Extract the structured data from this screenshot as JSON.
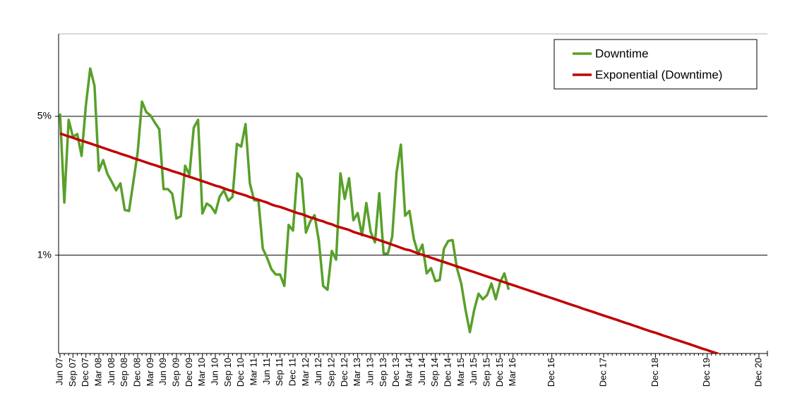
{
  "chart_data": {
    "type": "line",
    "log_scale": true,
    "grid": true,
    "legend": "top-right",
    "ylim": [
      0.32,
      13
    ],
    "yticks": [
      {
        "value": 1,
        "label": "1%"
      },
      {
        "value": 5,
        "label": "5%"
      }
    ],
    "categories": [
      "Jun 07",
      null,
      null,
      "Sep 07",
      null,
      null,
      "Dec 07",
      null,
      null,
      "Mar 08",
      null,
      null,
      "Jun 08",
      null,
      null,
      "Sep 08",
      null,
      null,
      "Dec 08",
      null,
      null,
      "Mar 09",
      null,
      null,
      "Jun 09",
      null,
      null,
      "Sep 09",
      null,
      null,
      "Dec 09",
      null,
      null,
      "Mar 10",
      null,
      null,
      "Jun 10",
      null,
      null,
      "Sep 10",
      null,
      null,
      "Dec 10",
      null,
      null,
      "Mar 11",
      null,
      null,
      "Jun 11",
      null,
      null,
      "Sep 11",
      null,
      null,
      "Dec 11",
      null,
      null,
      "Mar 12",
      null,
      null,
      "Jun 12",
      null,
      null,
      "Sep 12",
      null,
      null,
      "Dec 12",
      null,
      null,
      "Mar 13",
      null,
      null,
      "Jun 13",
      null,
      null,
      "Sep 13",
      null,
      null,
      "Dec 13",
      null,
      null,
      "Mar 14",
      null,
      null,
      "Jun 14",
      null,
      null,
      "Sep 14",
      null,
      null,
      "Dec 14",
      null,
      null,
      "Mar 15",
      null,
      null,
      "Jun 15",
      null,
      null,
      "Sep 15",
      null,
      null,
      "Dec 15",
      null,
      null,
      "Mar 16",
      null,
      null,
      null,
      null,
      null,
      null,
      null,
      null,
      "Dec 16",
      null,
      null,
      null,
      null,
      null,
      null,
      null,
      null,
      null,
      null,
      null,
      "Dec 17",
      null,
      null,
      null,
      null,
      null,
      null,
      null,
      null,
      null,
      null,
      null,
      "Dec 18",
      null,
      null,
      null,
      null,
      null,
      null,
      null,
      null,
      null,
      null,
      null,
      "Dec 19",
      null,
      null,
      null,
      null,
      null,
      null,
      null,
      null,
      null,
      null,
      null,
      "Dec 20"
    ],
    "series": [
      {
        "name": "Downtime",
        "color": "#58a02a",
        "values": [
          5.16,
          1.84,
          4.8,
          3.94,
          4.07,
          3.16,
          5.69,
          8.7,
          7.1,
          2.66,
          3.01,
          2.56,
          2.34,
          2.12,
          2.3,
          1.69,
          1.67,
          2.34,
          3.29,
          5.93,
          5.25,
          5.04,
          4.64,
          4.31,
          2.15,
          2.15,
          2.04,
          1.53,
          1.57,
          2.82,
          2.54,
          4.38,
          4.8,
          1.62,
          1.82,
          1.76,
          1.63,
          1.97,
          2.12,
          1.88,
          1.97,
          3.63,
          3.52,
          4.57,
          2.3,
          1.89,
          1.88,
          1.08,
          0.97,
          0.85,
          0.8,
          0.8,
          0.7,
          1.42,
          1.33,
          2.58,
          2.42,
          1.3,
          1.48,
          1.59,
          1.18,
          0.7,
          0.67,
          1.05,
          0.95,
          2.58,
          1.92,
          2.44,
          1.5,
          1.63,
          1.26,
          1.83,
          1.31,
          1.16,
          2.05,
          1.02,
          1.02,
          1.24,
          2.6,
          3.6,
          1.58,
          1.67,
          1.21,
          1.02,
          1.13,
          0.81,
          0.86,
          0.74,
          0.75,
          1.08,
          1.18,
          1.19,
          0.86,
          0.72,
          0.53,
          0.41,
          0.53,
          0.64,
          0.6,
          0.63,
          0.72,
          0.6,
          0.73,
          0.81,
          0.67,
          null,
          null,
          null,
          null,
          null,
          null,
          null,
          null,
          null,
          null,
          null,
          null,
          null,
          null,
          null,
          null,
          null,
          null,
          null,
          null,
          null,
          null,
          null,
          null,
          null,
          null,
          null,
          null,
          null,
          null,
          null,
          null,
          null,
          null,
          null,
          null,
          null,
          null,
          null,
          null,
          null,
          null,
          null,
          null,
          null,
          null,
          null,
          null,
          null,
          null,
          null,
          null,
          null,
          null,
          null,
          null,
          null,
          null
        ]
      },
      {
        "name": "Exponential (Downtime)",
        "color": "#c00000",
        "values": [
          4.1,
          4.03,
          3.96,
          3.9,
          3.83,
          3.77,
          3.71,
          3.65,
          3.59,
          3.53,
          3.47,
          3.41,
          3.35,
          3.3,
          3.24,
          3.19,
          3.14,
          3.08,
          3.03,
          2.98,
          2.93,
          2.88,
          2.84,
          2.79,
          2.74,
          2.7,
          2.65,
          2.61,
          2.57,
          2.52,
          2.48,
          2.44,
          2.4,
          2.36,
          2.32,
          2.28,
          2.24,
          2.21,
          2.17,
          2.13,
          2.1,
          2.06,
          2.03,
          2.0,
          1.96,
          1.93,
          1.9,
          1.87,
          1.84,
          1.8,
          1.77,
          1.75,
          1.72,
          1.69,
          1.66,
          1.63,
          1.61,
          1.58,
          1.55,
          1.53,
          1.5,
          1.48,
          1.45,
          1.43,
          1.4,
          1.38,
          1.36,
          1.34,
          1.31,
          1.29,
          1.27,
          1.25,
          1.23,
          1.21,
          1.19,
          1.17,
          1.15,
          1.13,
          1.11,
          1.09,
          1.07,
          1.06,
          1.04,
          1.02,
          1.004,
          0.988,
          0.971,
          0.955,
          0.939,
          0.924,
          0.908,
          0.893,
          0.878,
          0.864,
          0.849,
          0.835,
          0.822,
          0.808,
          0.794,
          0.781,
          0.768,
          0.756,
          0.743,
          0.731,
          0.718,
          0.707,
          0.695,
          0.683,
          0.672,
          0.661,
          0.65,
          0.639,
          0.628,
          0.618,
          0.608,
          0.598,
          0.588,
          0.578,
          0.568,
          0.559,
          0.55,
          0.54,
          0.531,
          0.523,
          0.514,
          0.505,
          0.497,
          0.489,
          0.481,
          0.473,
          0.465,
          0.457,
          0.45,
          0.442,
          0.435,
          0.427,
          0.42,
          0.413,
          0.407,
          0.4,
          0.393,
          0.387,
          0.38,
          0.374,
          0.368,
          0.362,
          0.356,
          0.35,
          0.344,
          0.338,
          0.333,
          0.327,
          0.322,
          0.316,
          0.311,
          0.306,
          0.301,
          0.296,
          0.291,
          0.286,
          0.281,
          0.277,
          0.272
        ]
      }
    ]
  }
}
